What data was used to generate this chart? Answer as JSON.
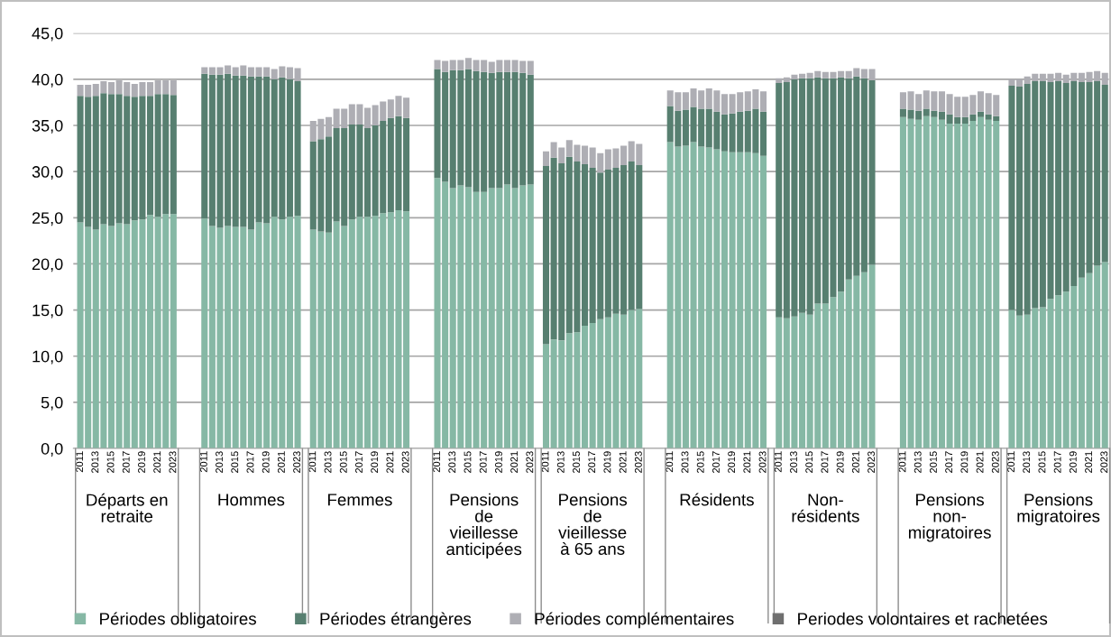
{
  "chart_data": {
    "type": "bar",
    "stacked": true,
    "grid": "y",
    "legend": "bottom",
    "ylim": [
      0,
      45
    ],
    "yticks": [
      {
        "value": 0,
        "label": "0,0"
      },
      {
        "value": 5,
        "label": "5,0"
      },
      {
        "value": 10,
        "label": "10,0"
      },
      {
        "value": 15,
        "label": "15,0"
      },
      {
        "value": 20,
        "label": "20,0"
      },
      {
        "value": 25,
        "label": "25,0"
      },
      {
        "value": 30,
        "label": "30,0"
      },
      {
        "value": 35,
        "label": "35,0"
      },
      {
        "value": 40,
        "label": "40,0"
      },
      {
        "value": 45,
        "label": "45,0"
      }
    ],
    "categories": [
      "2011",
      null,
      "2013",
      null,
      "2015",
      null,
      "2017",
      null,
      "2019",
      null,
      "2021",
      null,
      "2023",
      null,
      null,
      null,
      "2011",
      null,
      "2013",
      null,
      "2015",
      null,
      "2017",
      null,
      "2019",
      null,
      "2021",
      null,
      "2023",
      null,
      "2011",
      null,
      "2013",
      null,
      "2015",
      null,
      "2017",
      null,
      "2019",
      null,
      "2021",
      null,
      "2023",
      null,
      null,
      null,
      "2011",
      null,
      "2013",
      null,
      "2015",
      null,
      "2017",
      null,
      "2019",
      null,
      "2021",
      null,
      "2023",
      null,
      "2011",
      null,
      "2013",
      null,
      "2015",
      null,
      "2017",
      null,
      "2019",
      null,
      "2021",
      null,
      "2023",
      null,
      null,
      null,
      "2011",
      null,
      "2013",
      null,
      "2015",
      null,
      "2017",
      null,
      "2019",
      null,
      "2021",
      null,
      "2023",
      null,
      "2011",
      null,
      "2013",
      null,
      "2015",
      null,
      "2017",
      null,
      "2019",
      null,
      "2021",
      null,
      "2023",
      null,
      null,
      null,
      "2011",
      null,
      "2013",
      null,
      "2015",
      null,
      "2017",
      null,
      "2019",
      null,
      "2021",
      null,
      "2023",
      null,
      "2011",
      null,
      "2013",
      null,
      "2015",
      null,
      "2017",
      null,
      "2019",
      null,
      "2021",
      null,
      "2023"
    ],
    "annotations": [
      "Départs en\nretraite",
      "Hommes",
      "Femmes",
      "Pensions\nde\nvieillesse\nanticipées",
      "Pensions\nde\nvieillesse\nà 65 ans",
      "Résidents",
      "Non-\nrésidents",
      "Pensions\nnon-\nmigratoires",
      "Pensions\nmigratoires"
    ],
    "series": [
      {
        "name": "Périodes obligatoires",
        "color": "#86b8a5",
        "values": [
          24.5,
          24.0,
          23.7,
          24.3,
          24.1,
          24.4,
          24.3,
          24.7,
          24.8,
          25.3,
          25.1,
          25.4,
          25.4,
          null,
          null,
          null,
          24.9,
          24.1,
          23.9,
          24.1,
          24.0,
          24.0,
          23.7,
          24.5,
          24.4,
          25.1,
          24.8,
          25.1,
          25.2,
          null,
          23.7,
          23.5,
          23.4,
          24.6,
          24.1,
          24.8,
          25.1,
          25.1,
          25.2,
          25.5,
          25.6,
          25.8,
          25.7,
          null,
          null,
          null,
          29.3,
          28.9,
          28.2,
          28.5,
          28.3,
          27.8,
          27.8,
          28.2,
          28.2,
          28.6,
          28.2,
          28.5,
          28.6,
          null,
          11.3,
          11.8,
          11.7,
          12.5,
          12.6,
          13.3,
          13.6,
          14.0,
          14.2,
          14.6,
          14.5,
          15.0,
          15.1,
          null,
          null,
          null,
          33.2,
          32.7,
          32.8,
          33.2,
          32.7,
          32.6,
          32.4,
          32.2,
          32.1,
          32.1,
          32.1,
          32.0,
          31.7,
          null,
          14.2,
          14.1,
          14.3,
          14.7,
          14.5,
          15.7,
          15.7,
          16.4,
          17.0,
          18.3,
          18.7,
          19.1,
          19.9,
          null,
          null,
          null,
          35.9,
          35.7,
          35.6,
          36.0,
          35.9,
          35.6,
          35.2,
          35.2,
          35.2,
          35.5,
          35.9,
          35.6,
          35.5,
          null,
          15.0,
          14.4,
          14.5,
          15.2,
          15.3,
          16.2,
          16.6,
          17.0,
          17.6,
          18.5,
          19.0,
          19.8,
          20.2
        ]
      },
      {
        "name": "Périodes étrangères",
        "color": "#577f70",
        "values": [
          13.7,
          14.1,
          14.5,
          14.2,
          14.3,
          14.0,
          13.9,
          13.4,
          13.4,
          12.9,
          13.3,
          13.0,
          12.9,
          null,
          null,
          null,
          15.7,
          16.4,
          16.6,
          16.5,
          16.4,
          16.4,
          16.6,
          15.8,
          15.9,
          14.9,
          15.4,
          14.9,
          14.6,
          null,
          9.6,
          10.0,
          10.4,
          10.1,
          10.6,
          10.3,
          10.0,
          9.6,
          9.8,
          10.0,
          10.2,
          10.2,
          10.1,
          null,
          null,
          null,
          11.8,
          11.9,
          12.8,
          12.5,
          12.8,
          13.1,
          13.0,
          12.5,
          12.6,
          12.2,
          12.6,
          12.2,
          11.9,
          null,
          19.3,
          19.7,
          19.2,
          19.1,
          18.5,
          17.5,
          16.8,
          15.9,
          16.0,
          15.8,
          16.2,
          16.1,
          15.6,
          null,
          null,
          null,
          3.9,
          3.9,
          3.9,
          3.8,
          4.1,
          4.2,
          4.1,
          4.0,
          4.2,
          4.4,
          4.5,
          4.8,
          4.8,
          null,
          25.4,
          25.6,
          25.7,
          25.4,
          25.6,
          24.5,
          24.4,
          23.7,
          23.2,
          21.8,
          21.6,
          21.0,
          20.0,
          null,
          null,
          null,
          0.9,
          1.0,
          1.0,
          0.8,
          0.7,
          0.9,
          1.0,
          0.7,
          0.7,
          0.7,
          0.6,
          0.6,
          0.5,
          null,
          24.3,
          24.8,
          25.0,
          24.6,
          24.5,
          23.5,
          23.2,
          22.6,
          22.2,
          21.2,
          20.7,
          20.0,
          19.2
        ]
      },
      {
        "name": "Périodes complémentaires",
        "color": "#aeaeb4",
        "values": [
          1.2,
          1.3,
          1.3,
          1.3,
          1.3,
          1.5,
          1.5,
          1.4,
          1.5,
          1.5,
          1.5,
          1.5,
          1.6,
          null,
          null,
          null,
          0.7,
          0.8,
          0.8,
          0.9,
          0.9,
          1.1,
          1.0,
          1.0,
          1.0,
          1.1,
          1.2,
          1.3,
          1.4,
          null,
          2.2,
          2.2,
          2.1,
          2.1,
          2.1,
          2.2,
          2.2,
          2.2,
          2.2,
          2.1,
          2.0,
          2.2,
          2.2,
          null,
          null,
          null,
          1.0,
          1.2,
          1.1,
          1.1,
          1.2,
          1.2,
          1.3,
          1.2,
          1.3,
          1.3,
          1.3,
          1.3,
          1.5,
          null,
          1.6,
          1.7,
          1.7,
          1.8,
          1.8,
          2.0,
          2.2,
          2.1,
          2.2,
          2.1,
          2.1,
          2.2,
          2.3,
          null,
          null,
          null,
          1.7,
          2.0,
          1.9,
          2.0,
          2.0,
          2.2,
          2.3,
          2.2,
          2.1,
          2.1,
          2.1,
          2.1,
          2.2,
          null,
          0.5,
          0.5,
          0.5,
          0.5,
          0.6,
          0.7,
          0.7,
          0.7,
          0.7,
          0.8,
          0.9,
          1.0,
          1.2,
          null,
          null,
          null,
          1.8,
          2.0,
          1.8,
          2.0,
          2.1,
          2.2,
          2.2,
          2.2,
          2.2,
          2.1,
          2.2,
          2.3,
          2.3,
          null,
          0.7,
          0.8,
          0.8,
          0.8,
          0.8,
          0.9,
          0.9,
          0.9,
          0.9,
          1.0,
          1.1,
          1.1,
          1.3
        ]
      },
      {
        "name": "Periodes volontaires et rachetées",
        "color": "#6f6f6f",
        "values": [
          null,
          null,
          null,
          null,
          null,
          null,
          null,
          null,
          null,
          null,
          null,
          null,
          null,
          null,
          null,
          null,
          null,
          null,
          null,
          null,
          null,
          null,
          null,
          null,
          null,
          null,
          null,
          null,
          null,
          null,
          null,
          null,
          null,
          null,
          null,
          null,
          null,
          null,
          null,
          null,
          null,
          null,
          null,
          null,
          null,
          null,
          null,
          null,
          null,
          null,
          null,
          null,
          null,
          null,
          null,
          null,
          null,
          null,
          null,
          null,
          null,
          null,
          null,
          null,
          null,
          null,
          null,
          null,
          null,
          null,
          null,
          null,
          null,
          null,
          null,
          null,
          null,
          null,
          null,
          null,
          null,
          null,
          null,
          null,
          null,
          null,
          null,
          null,
          null,
          null,
          null,
          null,
          null,
          null,
          null,
          null,
          null,
          null,
          null,
          null,
          null,
          null,
          null,
          null,
          null,
          null,
          null,
          null,
          null,
          null,
          null,
          null,
          null,
          null,
          null,
          null,
          null,
          null,
          null,
          null,
          null,
          null,
          null,
          null,
          null,
          null,
          null,
          null,
          null,
          null,
          null,
          null,
          null
        ]
      }
    ]
  }
}
